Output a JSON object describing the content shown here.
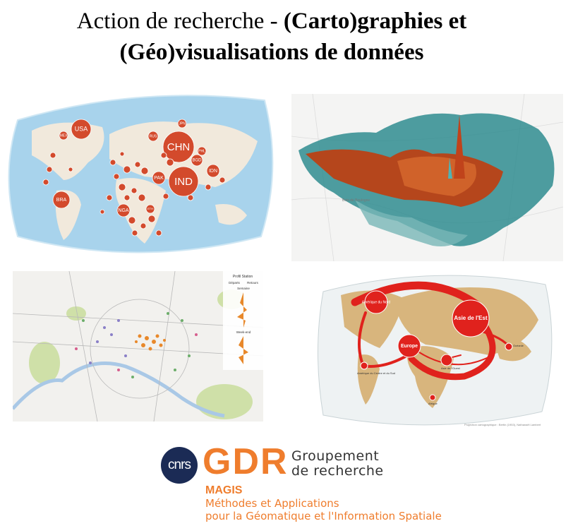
{
  "title": {
    "line1_plain": "Action de recherche - ",
    "line1_bold": "(Carto)graphies et",
    "line2_bold": "(Géo)visualisations de données"
  },
  "panel1": {
    "countries": [
      "USA",
      "MEX",
      "BRA",
      "CHN",
      "IND",
      "JPN",
      "RUS",
      "PHL",
      "BGD",
      "IDN",
      "PAK",
      "NGA",
      "ETH"
    ]
  },
  "panel2": {
    "place_labels": [
      "Bois de Boulogne"
    ]
  },
  "panel3": {
    "legend_title": "Profil Station",
    "legend_departs": "Départs",
    "legend_retours": "Retours",
    "legend_semaine": "Semaine",
    "legend_weekend": "Week-end"
  },
  "panel4": {
    "regions": [
      "Amérique du Nord",
      "Asie de l'Est",
      "Europe",
      "Asie de l'Ouest",
      "Océanie",
      "Amérique du Centre et du Sud",
      "Afrique"
    ],
    "footnote": "Projection cartographique : Bertin (1953), Nathanaël Lambert"
  },
  "logo": {
    "cnrs": "cnrs",
    "gdr": "GDR",
    "groupement": "Groupement",
    "de_recherche": "de recherche",
    "magis": "MAGIS",
    "methodes": "Méthodes et Applications",
    "pour_la": "pour la Géomatique et l'Information Spatiale"
  }
}
